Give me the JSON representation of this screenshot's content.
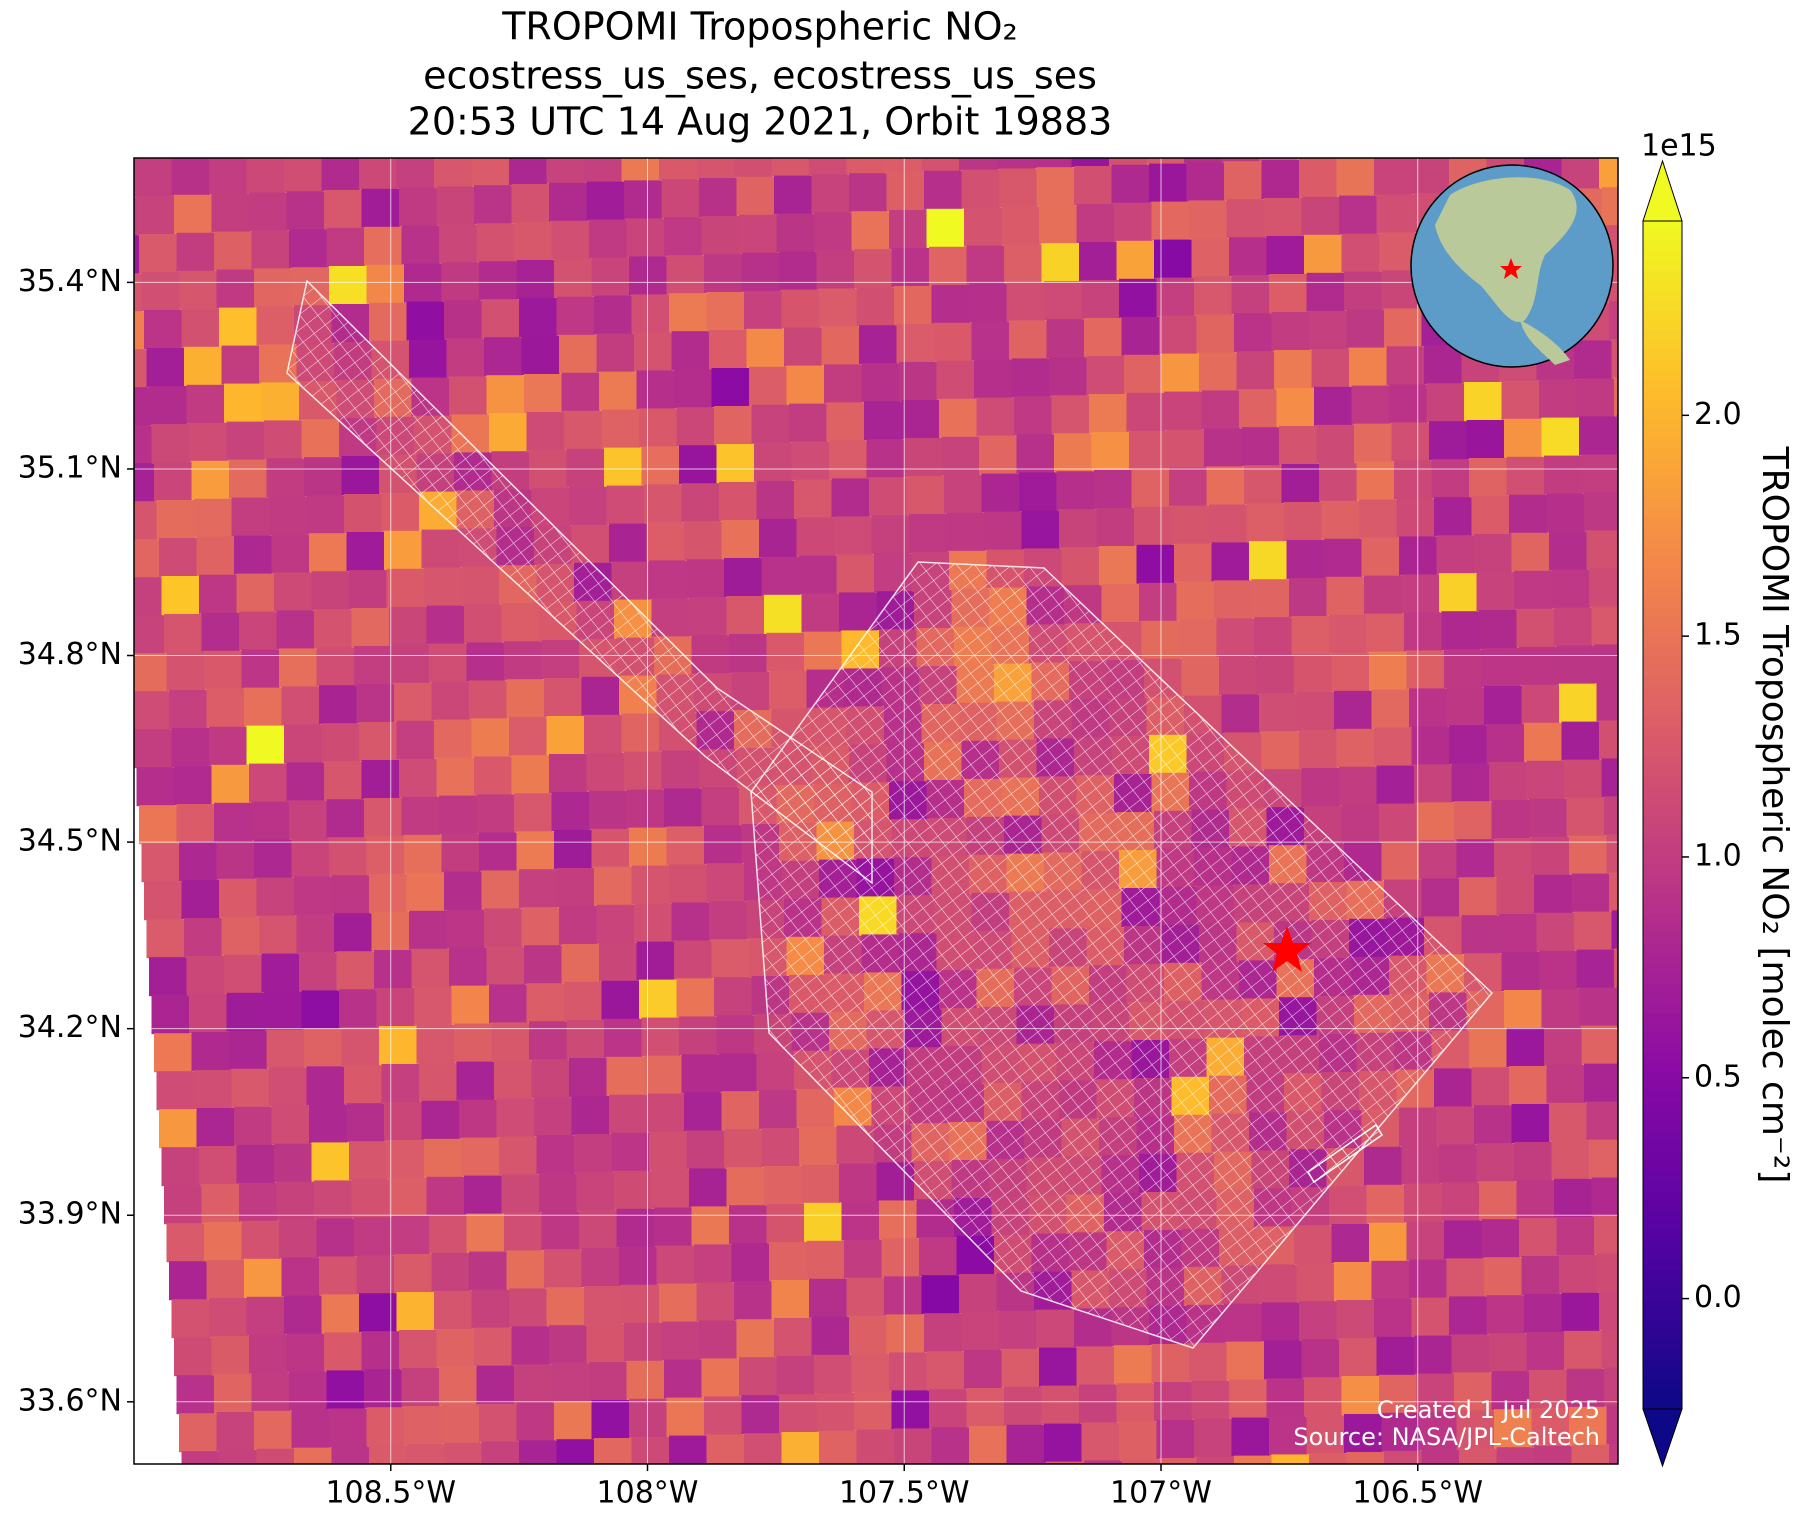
{
  "map": {
    "title": "TROPOMI Tropospheric NO₂",
    "subtitle": "ecostress_us_ses, ecostress_us_ses",
    "time": "20:53 UTC 14 Aug 2021, Orbit 19883",
    "xlim": [
      -109.0,
      -106.11
    ],
    "ylim": [
      33.5,
      35.6
    ],
    "xticks": [
      {
        "value": -108.5,
        "label": "108.5°W"
      },
      {
        "value": -108,
        "label": "108°W"
      },
      {
        "value": -107.5,
        "label": "107.5°W"
      },
      {
        "value": -107,
        "label": "107°W"
      },
      {
        "value": -106.5,
        "label": "106.5°W"
      }
    ],
    "yticks": [
      {
        "value": 33.6,
        "label": "33.6°N"
      },
      {
        "value": 33.9,
        "label": "33.9°N"
      },
      {
        "value": 34.2,
        "label": "34.2°N"
      },
      {
        "value": 34.5,
        "label": "34.5°N"
      },
      {
        "value": 34.8,
        "label": "34.8°N"
      },
      {
        "value": 35.1,
        "label": "35.1°N"
      },
      {
        "value": 35.4,
        "label": "35.4°N"
      }
    ],
    "grid": true,
    "colorbar": {
      "label": "TROPOMI Tropospheric NO₂ [molec cm⁻²]",
      "offset": "1e15",
      "clim": [
        -0.25,
        2.44
      ],
      "colormap": "plasma",
      "ticks": [
        {
          "value": 0,
          "label": "0.0"
        },
        0.5,
        {
          "value": 1,
          "label": "1.0"
        },
        1.5,
        {
          "value": 2,
          "label": "2.0"
        }
      ]
    },
    "credits": [
      "Created 1 Jul 2025",
      "Source: NASA/JPL-Caltech"
    ]
  }
}
